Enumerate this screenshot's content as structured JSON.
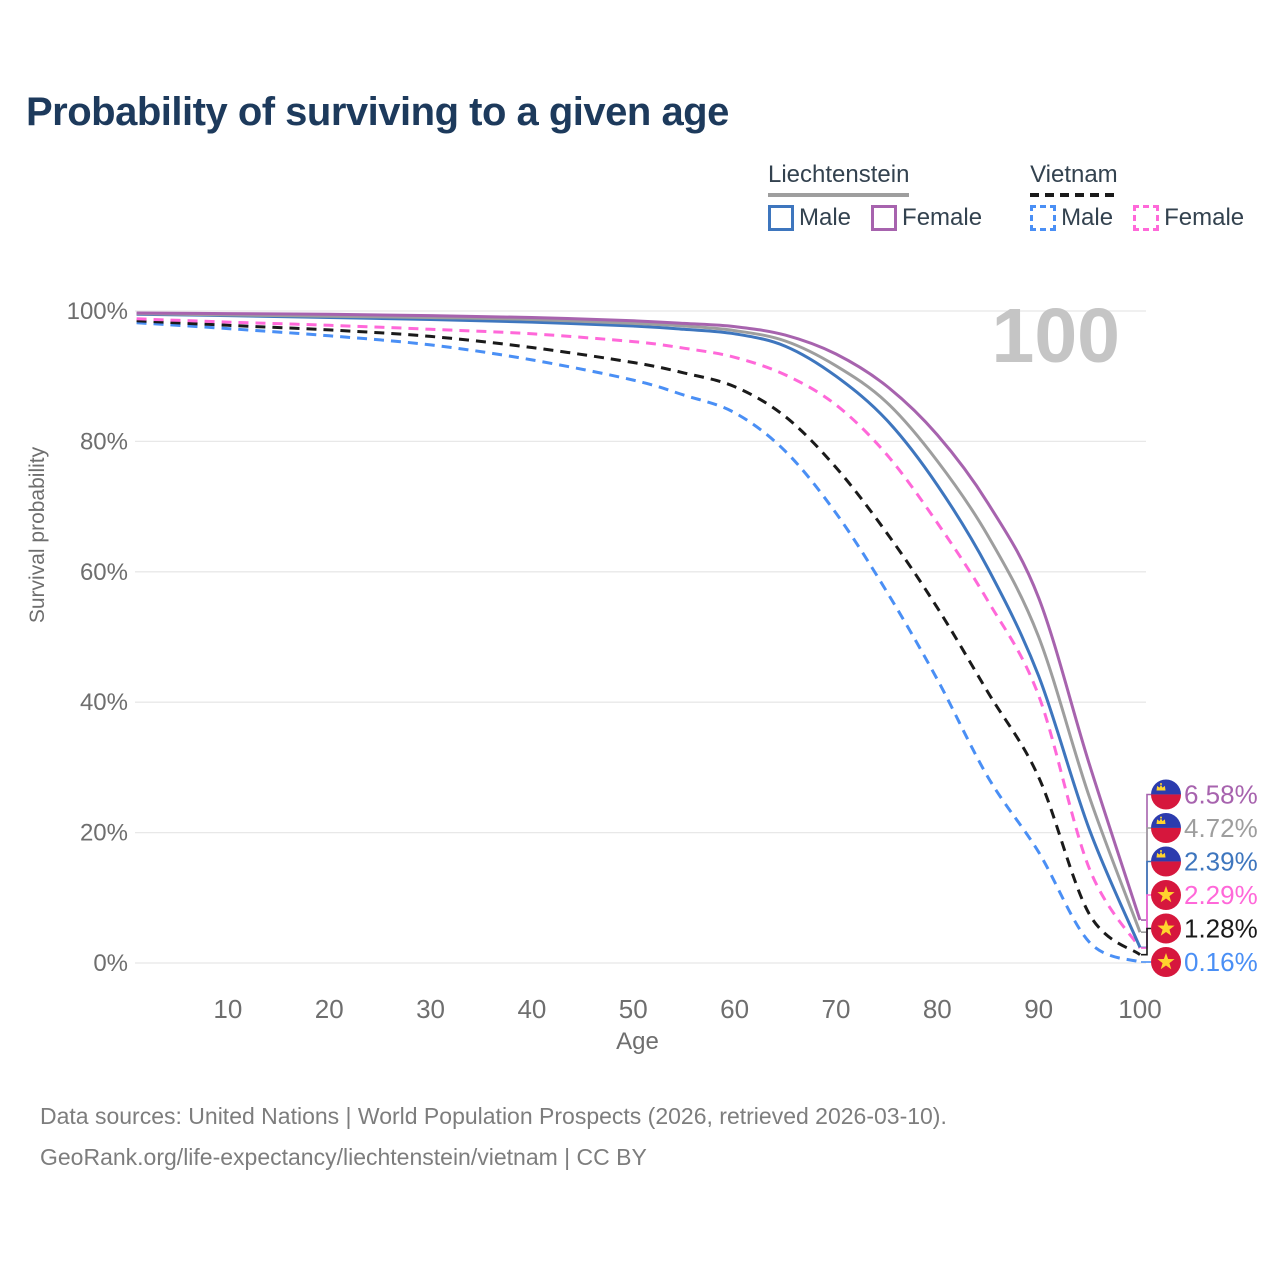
{
  "page": {
    "title": "Probability of surviving to a given age",
    "footer_lines": [
      "Data sources: United Nations | World Population Prospects (2026, retrieved 2026-03-10).",
      "GeoRank.org/life-expectancy/liechtenstein/vietnam | CC BY"
    ]
  },
  "legend": {
    "groups": [
      {
        "label": "Liechtenstein",
        "underline_style": "solid",
        "underline_color": "#9e9e9e",
        "items": [
          {
            "label": "Male",
            "color": "#3e76be",
            "dashed": false
          },
          {
            "label": "Female",
            "color": "#a763ae",
            "dashed": false
          }
        ]
      },
      {
        "label": "Vietnam",
        "underline_style": "dashed",
        "underline_color": "#1a1a1a",
        "items": [
          {
            "label": "Male",
            "color": "#4a8ff5",
            "dashed": true
          },
          {
            "label": "Female",
            "color": "#ff68d9",
            "dashed": true
          }
        ]
      }
    ]
  },
  "chart_data": {
    "type": "line",
    "title": "Probability of surviving to a given age",
    "xlabel": "Age",
    "ylabel": "Survival probability",
    "xlim": [
      0,
      100
    ],
    "ylim": [
      0,
      100
    ],
    "xticks": [
      10,
      20,
      30,
      40,
      50,
      60,
      70,
      80,
      90,
      100
    ],
    "yticks": [
      0,
      20,
      40,
      60,
      80,
      100
    ],
    "ytick_suffix": "%",
    "grid": "horizontal-only",
    "legend_position": "top-right",
    "age_watermark": "100",
    "x": [
      1,
      10,
      20,
      30,
      40,
      50,
      55,
      60,
      65,
      70,
      75,
      80,
      85,
      90,
      95,
      100
    ],
    "series": [
      {
        "name": "Liechtenstein Female",
        "country": "Liechtenstein",
        "sex": "Female",
        "color": "#a763ae",
        "dashed": false,
        "flag": "liechtenstein",
        "end_label": "6.58%",
        "end_value": 6.58,
        "values": [
          99.7,
          99.6,
          99.5,
          99.3,
          99.0,
          98.5,
          98.1,
          97.6,
          96.3,
          93.4,
          88.5,
          81.0,
          70.5,
          56.0,
          30.5,
          6.58
        ]
      },
      {
        "name": "Liechtenstein Total",
        "country": "Liechtenstein",
        "sex": "Both",
        "color": "#9e9e9e",
        "dashed": false,
        "flag": "liechtenstein",
        "end_label": "4.72%",
        "end_value": 4.72,
        "values": [
          99.6,
          99.4,
          99.2,
          99.0,
          98.7,
          98.1,
          97.7,
          97.0,
          95.4,
          91.6,
          86.0,
          77.0,
          65.5,
          50.0,
          25.5,
          4.72
        ]
      },
      {
        "name": "Liechtenstein Male",
        "country": "Liechtenstein",
        "sex": "Male",
        "color": "#3e76be",
        "dashed": false,
        "flag": "liechtenstein",
        "end_label": "2.39%",
        "end_value": 2.39,
        "values": [
          99.5,
          99.3,
          99.0,
          98.7,
          98.3,
          97.7,
          97.2,
          96.5,
          94.6,
          90.0,
          83.3,
          73.3,
          60.5,
          44.0,
          20.5,
          2.39
        ]
      },
      {
        "name": "Vietnam Female",
        "country": "Vietnam",
        "sex": "Female",
        "color": "#ff68d9",
        "dashed": true,
        "flag": "vietnam",
        "end_label": "2.29%",
        "end_value": 2.29,
        "values": [
          98.8,
          98.3,
          97.8,
          97.2,
          96.5,
          95.3,
          94.3,
          92.9,
          90.2,
          85.6,
          78.0,
          67.5,
          55.5,
          41.0,
          14.5,
          2.29
        ]
      },
      {
        "name": "Vietnam Total",
        "country": "Vietnam",
        "sex": "Both",
        "color": "#1a1a1a",
        "dashed": true,
        "flag": "vietnam",
        "end_label": "1.28%",
        "end_value": 1.28,
        "values": [
          98.5,
          97.8,
          97.1,
          96.1,
          94.4,
          92.1,
          90.5,
          88.4,
          83.8,
          76.0,
          66.0,
          54.5,
          41.5,
          28.5,
          7.5,
          1.28
        ]
      },
      {
        "name": "Vietnam Male",
        "country": "Vietnam",
        "sex": "Male",
        "color": "#4a8ff5",
        "dashed": true,
        "flag": "vietnam",
        "end_label": "0.16%",
        "end_value": 0.16,
        "values": [
          98.2,
          97.3,
          96.2,
          94.8,
          92.5,
          89.4,
          87.1,
          84.4,
          78.5,
          69.0,
          57.0,
          43.5,
          28.5,
          17.0,
          3.2,
          0.16
        ]
      }
    ],
    "colors": {
      "title": "#1d3a5c",
      "axis_text": "#6e6e6e",
      "gridline": "#e8e8e8",
      "watermark": "#c5c5c5",
      "flag_liechtenstein_blue": "#2c3cae",
      "flag_red": "#d6173d",
      "flag_gold": "#ffd42e"
    }
  }
}
